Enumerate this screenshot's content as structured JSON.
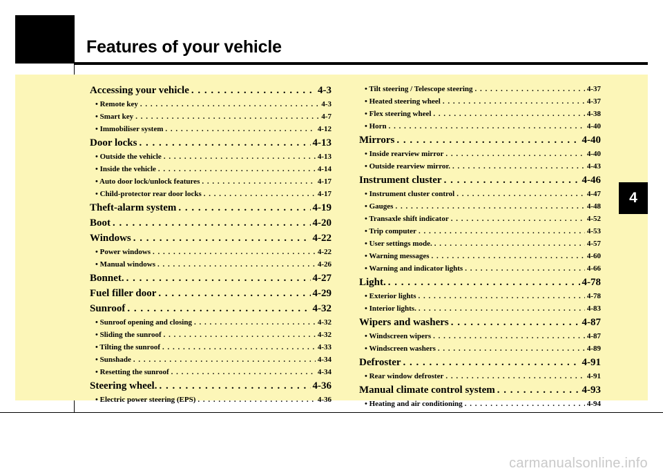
{
  "header": {
    "title": "Features of your vehicle",
    "chapter_number": "4"
  },
  "toc_left": [
    {
      "level": "main",
      "label": "Accessing your vehicle",
      "page": "4-3"
    },
    {
      "level": "sub",
      "label": "• Remote key",
      "page": "4-3"
    },
    {
      "level": "sub",
      "label": "• Smart key",
      "page": "4-7"
    },
    {
      "level": "sub",
      "label": "• Immobiliser system",
      "page": "4-12"
    },
    {
      "level": "main",
      "label": "Door locks",
      "page": "4-13"
    },
    {
      "level": "sub",
      "label": "• Outside the vehicle",
      "page": "4-13"
    },
    {
      "level": "sub",
      "label": "• Inside the vehicle",
      "page": "4-14"
    },
    {
      "level": "sub",
      "label": "• Auto door lock/unlock features",
      "page": "4-17"
    },
    {
      "level": "sub",
      "label": "• Child-protector rear door locks",
      "page": "4-17"
    },
    {
      "level": "main",
      "label": "Theft-alarm system",
      "page": "4-19"
    },
    {
      "level": "main",
      "label": "Boot",
      "page": "4-20"
    },
    {
      "level": "main",
      "label": "Windows",
      "page": "4-22"
    },
    {
      "level": "sub",
      "label": "• Power windows",
      "page": "4-22"
    },
    {
      "level": "sub",
      "label": "• Manual windows",
      "page": "4-26"
    },
    {
      "level": "main",
      "label": "Bonnet.",
      "page": "4-27"
    },
    {
      "level": "main",
      "label": "Fuel filler door",
      "page": "4-29"
    },
    {
      "level": "main",
      "label": "Sunroof",
      "page": "4-32"
    },
    {
      "level": "sub",
      "label": "• Sunroof opening and closing",
      "page": "4-32"
    },
    {
      "level": "sub",
      "label": "• Sliding the sunroof",
      "page": "4-32"
    },
    {
      "level": "sub",
      "label": "• Tilting the sunroof",
      "page": "4-33"
    },
    {
      "level": "sub",
      "label": "• Sunshade",
      "page": "4-34"
    },
    {
      "level": "sub",
      "label": "• Resetting the sunroof",
      "page": "4-34"
    },
    {
      "level": "main",
      "label": "Steering wheel.",
      "page": "4-36"
    },
    {
      "level": "sub",
      "label": "• Electric power steering (EPS)",
      "page": "4-36"
    }
  ],
  "toc_right": [
    {
      "level": "sub",
      "label": "• Tilt steering / Telescope steering",
      "page": "4-37"
    },
    {
      "level": "sub",
      "label": "• Heated steering wheel",
      "page": "4-37"
    },
    {
      "level": "sub",
      "label": "• Flex steering wheel",
      "page": "4-38"
    },
    {
      "level": "sub",
      "label": "• Horn",
      "page": "4-40"
    },
    {
      "level": "main",
      "label": "Mirrors",
      "page": "4-40"
    },
    {
      "level": "sub",
      "label": "• Inside rearview mirror",
      "page": "4-40"
    },
    {
      "level": "sub",
      "label": "• Outside rearview mirror.",
      "page": "4-43"
    },
    {
      "level": "main",
      "label": "Instrument cluster",
      "page": "4-46"
    },
    {
      "level": "sub",
      "label": "• Instrument cluster control",
      "page": "4-47"
    },
    {
      "level": "sub",
      "label": "• Gauges",
      "page": "4-48"
    },
    {
      "level": "sub",
      "label": "• Transaxle shift indicator",
      "page": "4-52"
    },
    {
      "level": "sub",
      "label": "• Trip computer",
      "page": "4-53"
    },
    {
      "level": "sub",
      "label": "• User settings mode.",
      "page": "4-57"
    },
    {
      "level": "sub",
      "label": "• Warning messages",
      "page": "4-60"
    },
    {
      "level": "sub",
      "label": "• Warning and indicator lights",
      "page": "4-66"
    },
    {
      "level": "main",
      "label": "Light.",
      "page": "4-78"
    },
    {
      "level": "sub",
      "label": "• Exterior lights",
      "page": "4-78"
    },
    {
      "level": "sub",
      "label": "• Interior lights.",
      "page": "4-83"
    },
    {
      "level": "main",
      "label": "Wipers and washers",
      "page": "4-87"
    },
    {
      "level": "sub",
      "label": "• Windscreen wipers",
      "page": "4-87"
    },
    {
      "level": "sub",
      "label": "• Windscreen washers",
      "page": "4-89"
    },
    {
      "level": "main",
      "label": "Defroster",
      "page": "4-91"
    },
    {
      "level": "sub",
      "label": "• Rear window defroster",
      "page": "4-91"
    },
    {
      "level": "main",
      "label": "Manual climate control system",
      "page": "4-93"
    },
    {
      "level": "sub",
      "label": "• Heating and air conditioning",
      "page": "4-94"
    }
  ],
  "watermark": "carmanualsonline.info",
  "colors": {
    "panel_background": "#fcf6b8",
    "ink": "#000000",
    "watermark": "#c9c9c9"
  }
}
